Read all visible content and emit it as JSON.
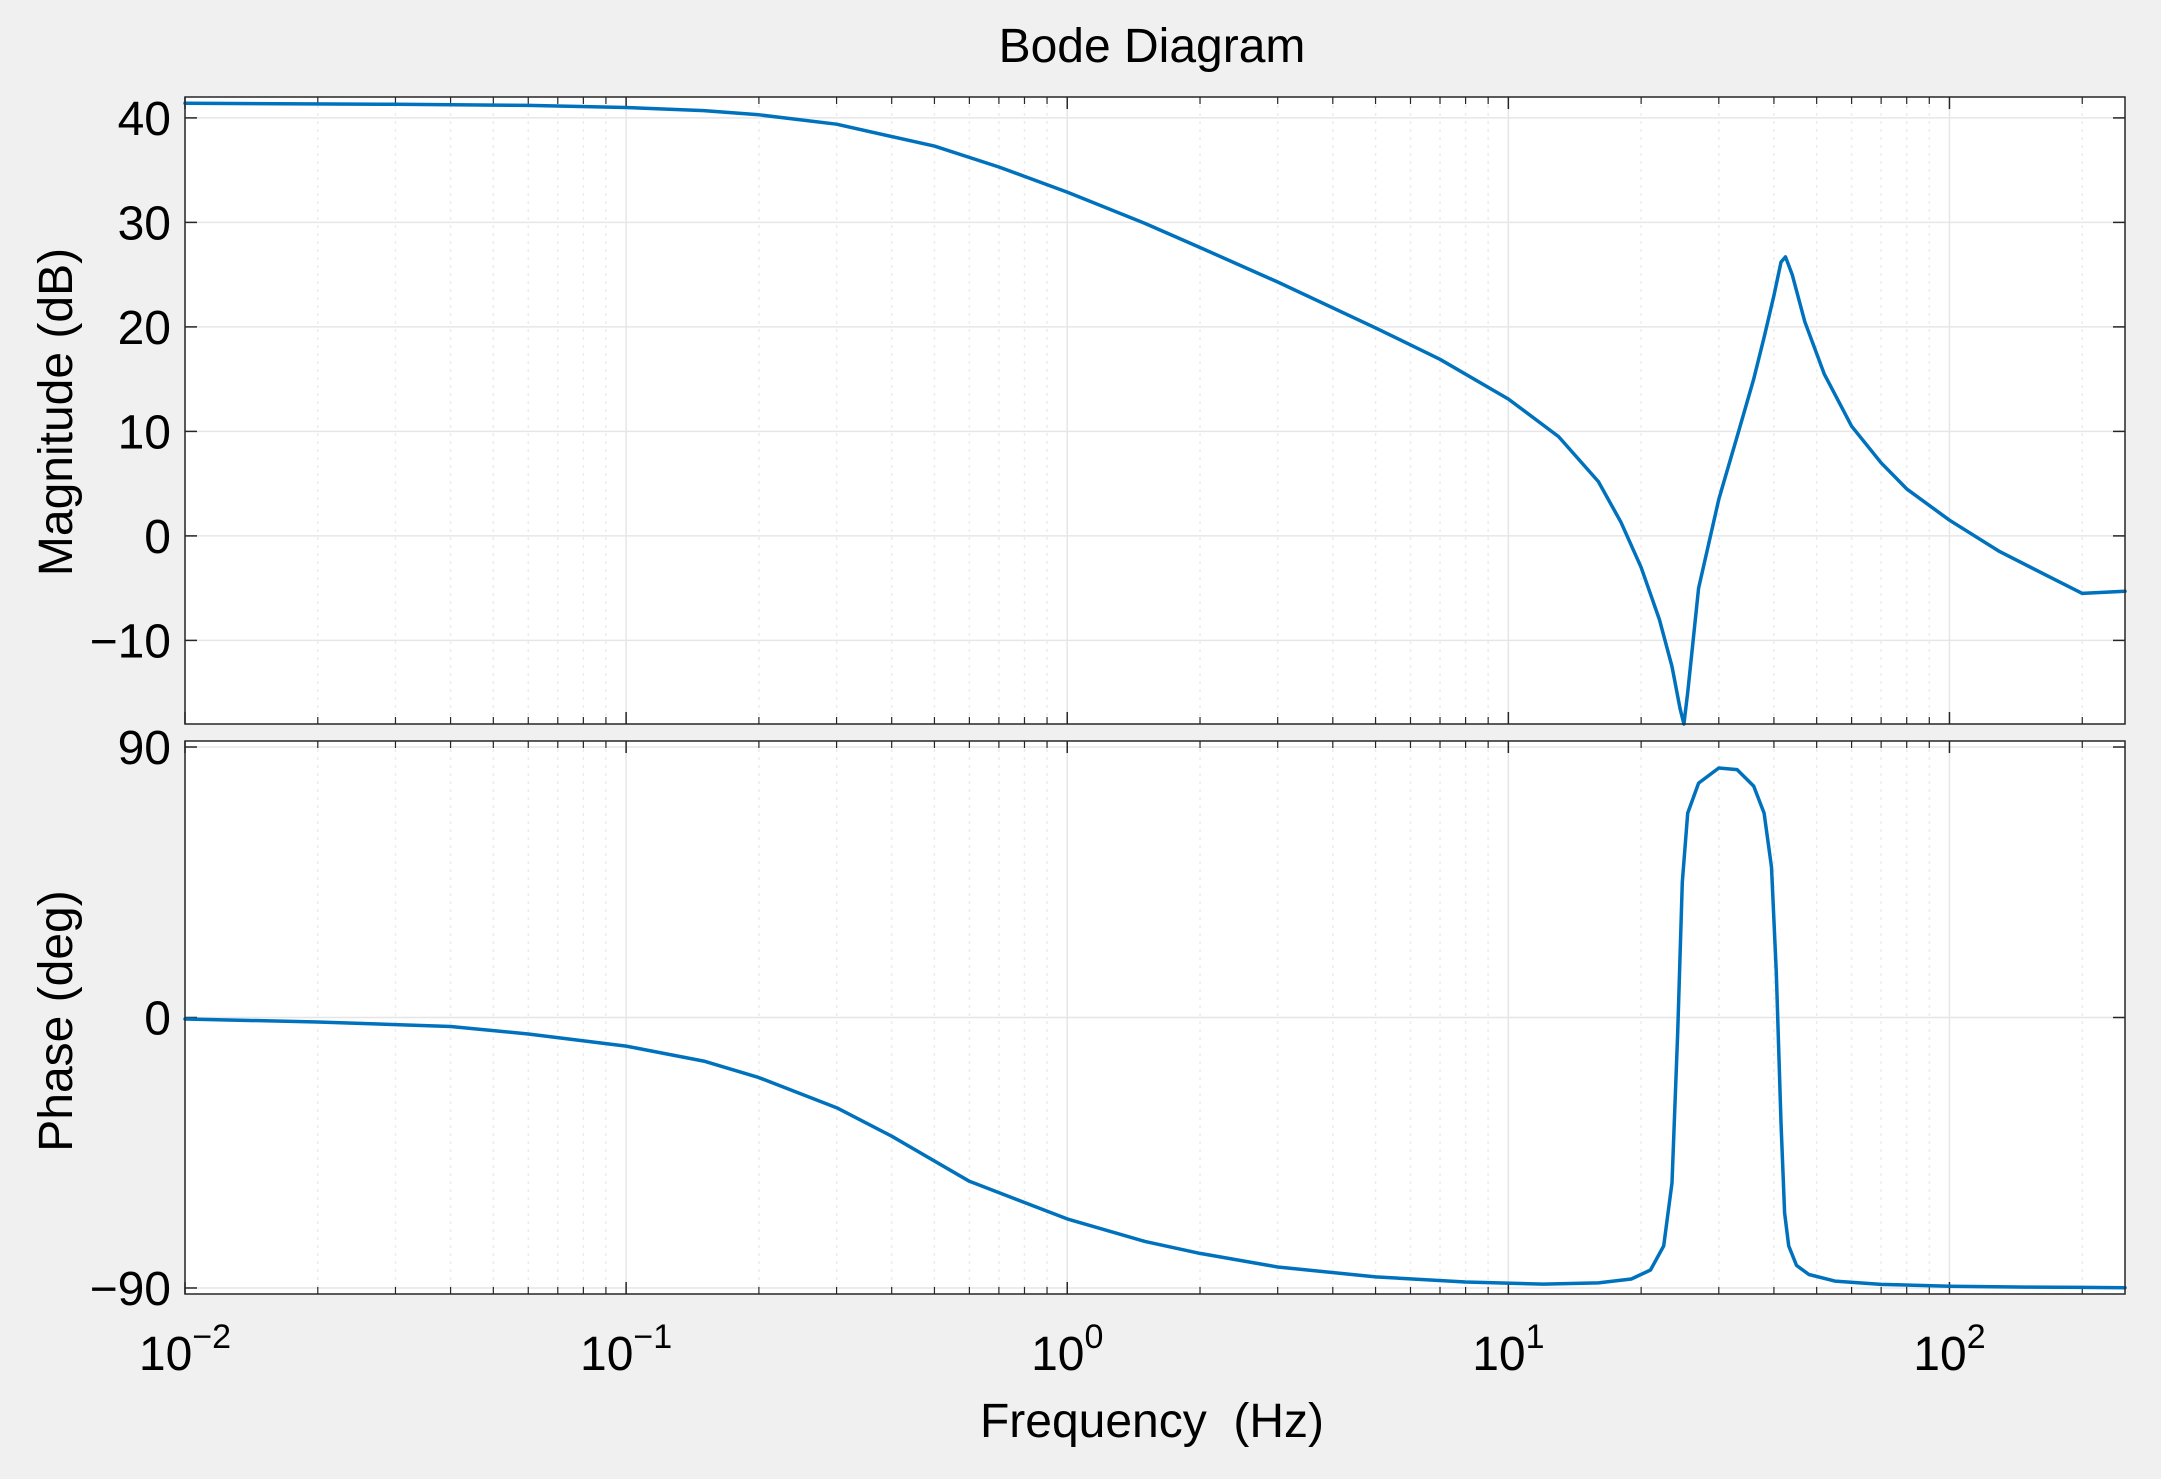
{
  "chart_data": {
    "type": "line",
    "title": "Bode Diagram",
    "xlabel": "Frequency  (Hz)",
    "x_scale": "log",
    "xlim": [
      0.01,
      250
    ],
    "x_ticks": [
      {
        "value": 0.01,
        "base": "10",
        "exp": "−2"
      },
      {
        "value": 0.1,
        "base": "10",
        "exp": "−1"
      },
      {
        "value": 1,
        "base": "10",
        "exp": "0"
      },
      {
        "value": 10,
        "base": "10",
        "exp": "1"
      },
      {
        "value": 100,
        "base": "10",
        "exp": "2"
      }
    ],
    "grid": true,
    "colors": {
      "line": "#0072BD",
      "figure_background": "#f0f0f0",
      "axes_background": "#ffffff",
      "grid": "#e6e6e6"
    },
    "panels": [
      {
        "name": "magnitude",
        "ylabel": "Magnitude (dB)",
        "ylim": [
          -18,
          42
        ],
        "y_ticks": [
          {
            "value": 40,
            "label": "40"
          },
          {
            "value": 30,
            "label": "30"
          },
          {
            "value": 20,
            "label": "20"
          },
          {
            "value": 10,
            "label": "10"
          },
          {
            "value": 0,
            "label": "0"
          },
          {
            "value": -10,
            "label": "−10"
          }
        ],
        "series": [
          {
            "x": [
              0.01,
              0.03,
              0.06,
              0.1,
              0.15,
              0.2,
              0.3,
              0.5,
              0.7,
              1,
              1.5,
              2,
              3,
              5,
              7,
              10,
              13,
              16,
              18,
              20,
              22,
              23.5,
              24.5,
              25,
              25.5,
              27,
              30,
              33,
              36,
              38,
              40,
              41.5,
              42.5,
              44,
              47,
              52,
              60,
              70,
              80,
              100,
              130,
              170,
              200,
              250
            ],
            "y": [
              41.4,
              41.3,
              41.2,
              41.0,
              40.7,
              40.3,
              39.4,
              37.3,
              35.3,
              32.9,
              29.9,
              27.6,
              24.3,
              19.9,
              16.9,
              13.1,
              9.5,
              5.2,
              1.3,
              -3.0,
              -8.0,
              -12.5,
              -16.5,
              -18.0,
              -15.0,
              -5.0,
              3.5,
              9.5,
              15.0,
              19.0,
              23.0,
              26.2,
              26.7,
              25.0,
              20.5,
              15.5,
              10.5,
              7.0,
              4.5,
              1.5,
              -1.5,
              -4.0,
              -5.5,
              -5.3
            ]
          }
        ]
      },
      {
        "name": "phase",
        "ylabel": "Phase (deg)",
        "ylim": [
          -92,
          92
        ],
        "y_ticks": [
          {
            "value": 90,
            "label": "90"
          },
          {
            "value": 0,
            "label": "0"
          },
          {
            "value": -90,
            "label": "−90"
          }
        ],
        "series": [
          {
            "x": [
              0.01,
              0.02,
              0.04,
              0.06,
              0.1,
              0.15,
              0.2,
              0.3,
              0.4,
              0.6,
              1,
              1.5,
              2,
              3,
              5,
              8,
              12,
              16,
              19,
              21,
              22.5,
              23.5,
              24.2,
              24.8,
              25.5,
              27,
              30,
              33,
              36,
              38,
              39.5,
              40.5,
              41.5,
              42.3,
              43.2,
              45,
              48,
              55,
              70,
              100,
              150,
              200,
              250
            ],
            "y": [
              -0.5,
              -1.5,
              -3.0,
              -5.5,
              -9.5,
              -14.5,
              -20.0,
              -30.0,
              -39.5,
              -54.5,
              -67.0,
              -74.5,
              -78.5,
              -83.0,
              -86.3,
              -88.0,
              -88.7,
              -88.3,
              -87.0,
              -84.0,
              -76.0,
              -55.0,
              -5.0,
              45.0,
              68.0,
              78.0,
              83.0,
              82.5,
              77.0,
              68.0,
              50.0,
              15.0,
              -35.0,
              -65.0,
              -76.0,
              -82.5,
              -85.5,
              -87.7,
              -88.8,
              -89.4,
              -89.7,
              -89.8,
              -89.9
            ]
          }
        ]
      }
    ]
  }
}
